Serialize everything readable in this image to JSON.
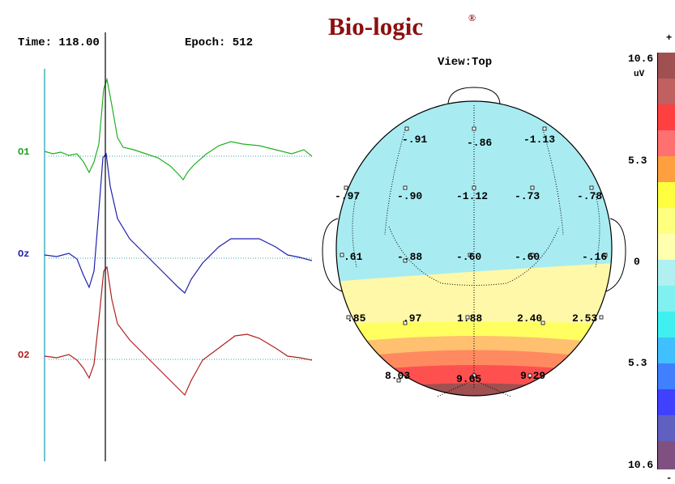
{
  "header": {
    "title": "Bio-logic",
    "mark": "®",
    "time": "Time: 118.00",
    "epoch": "Epoch: 512"
  },
  "waveforms": {
    "channels": [
      "O1",
      "Oz",
      "O2"
    ]
  },
  "topomap": {
    "view": "View:Top",
    "electrodes": [
      "-.91",
      "-.86",
      "-1.13",
      "-.97",
      "-.90",
      "-1.12",
      "-.73",
      "-.78",
      ".61",
      "-.88",
      "-.60",
      "-.60",
      "-.16",
      ".85",
      ".97",
      "1.88",
      "2.40",
      "2.53",
      "8.03",
      "9.65",
      "9.29"
    ]
  },
  "scale": {
    "top_sign": "+",
    "labels": [
      "10.6",
      "uV",
      "5.3",
      "0",
      "5.3",
      "10.6"
    ],
    "bottom_sign": "-"
  }
}
